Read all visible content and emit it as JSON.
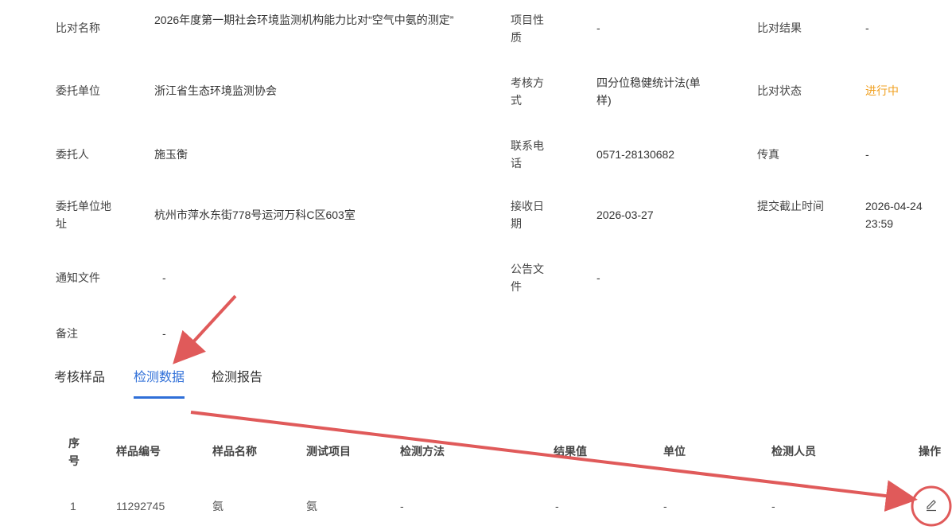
{
  "info": {
    "compare_name_label": "比对名称",
    "compare_name_value": "2026年度第一期社会环境监测机构能力比对“空气中氨的测定”",
    "project_nature_label": "项目性质",
    "project_nature_value": "-",
    "compare_result_label": "比对结果",
    "compare_result_value": "-",
    "client_unit_label": "委托单位",
    "client_unit_value": "浙江省生态环境监测协会",
    "assess_method_label": "考核方式",
    "assess_method_value": "四分位稳健统计法(单样)",
    "compare_status_label": "比对状态",
    "compare_status_value": "进行中",
    "client_label": "委托人",
    "client_value": "施玉衡",
    "phone_label": "联系电话",
    "phone_value": "0571-28130682",
    "fax_label": "传真",
    "fax_value": "-",
    "client_address_label": "委托单位地址",
    "client_address_value": "杭州市萍水东街778号运河万科C区603室",
    "receive_date_label": "接收日期",
    "receive_date_value": "2026-03-27",
    "deadline_label": "提交截止时间",
    "deadline_value": "2026-04-24 23:59",
    "notice_file_label": "通知文件",
    "notice_file_value": "-",
    "announcement_file_label": "公告文件",
    "announcement_file_value": "-",
    "remark_label": "备注",
    "remark_value": "-"
  },
  "tabs": [
    {
      "label": "考核样品",
      "active": false
    },
    {
      "label": "检测数据",
      "active": true
    },
    {
      "label": "检测报告",
      "active": false
    }
  ],
  "table": {
    "headers": [
      "序号",
      "样品编号",
      "样品名称",
      "测试项目",
      "检测方法",
      "结果值",
      "单位",
      "检测人员",
      "操作"
    ],
    "rows": [
      [
        "1",
        "11292745",
        "氨",
        "氨",
        "-",
        "-",
        "-",
        "-"
      ]
    ]
  },
  "icons": {
    "edit": "edit-pencil-icon"
  },
  "colors": {
    "accent": "#2f6fd8",
    "status": "#f0a020",
    "annotation": "#e05a5a"
  }
}
